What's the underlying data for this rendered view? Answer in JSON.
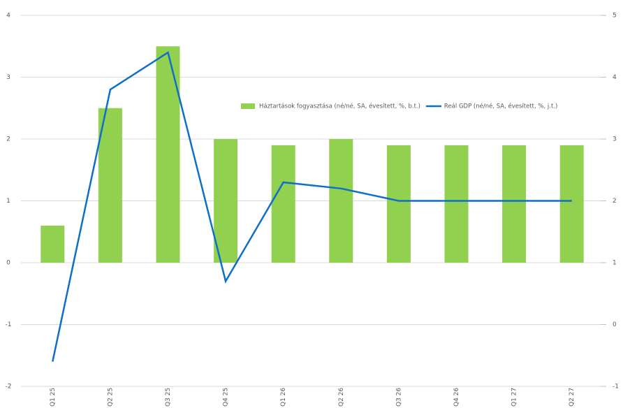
{
  "chart_data": {
    "type": "bar_line",
    "categories": [
      "Q1 25",
      "Q2 25",
      "Q3 25",
      "Q4 25",
      "Q1 26",
      "Q2 26",
      "Q3 26",
      "Q4 26",
      "Q1 27",
      "Q2 27"
    ],
    "series": [
      {
        "name": "Háztartások fogyasztása (né/né, SA, évesített, %, b.t.)",
        "color": "#92d050",
        "kind": "bar",
        "values": [
          0.6,
          2.5,
          3.5,
          2.0,
          1.9,
          2.0,
          1.9,
          1.9,
          1.9,
          1.9
        ]
      },
      {
        "name": "Reál GDP (né/né, SA, évesített, %, j.t.)",
        "color": "#0f6fc6",
        "kind": "line",
        "axis": "y2",
        "values": [
          -0.6,
          3.8,
          4.4,
          0.7,
          2.3,
          2.2,
          2.0,
          2.0,
          2.0,
          2.0
        ]
      }
    ],
    "ylim": [
      -2,
      4
    ],
    "yticks": [
      -2,
      -1,
      0,
      1,
      2,
      3,
      4
    ],
    "y2lim": [
      -1,
      5
    ],
    "y2ticks": [
      -1,
      0,
      1,
      2,
      3,
      4,
      5
    ],
    "grid": true,
    "legend": "inside-right"
  }
}
